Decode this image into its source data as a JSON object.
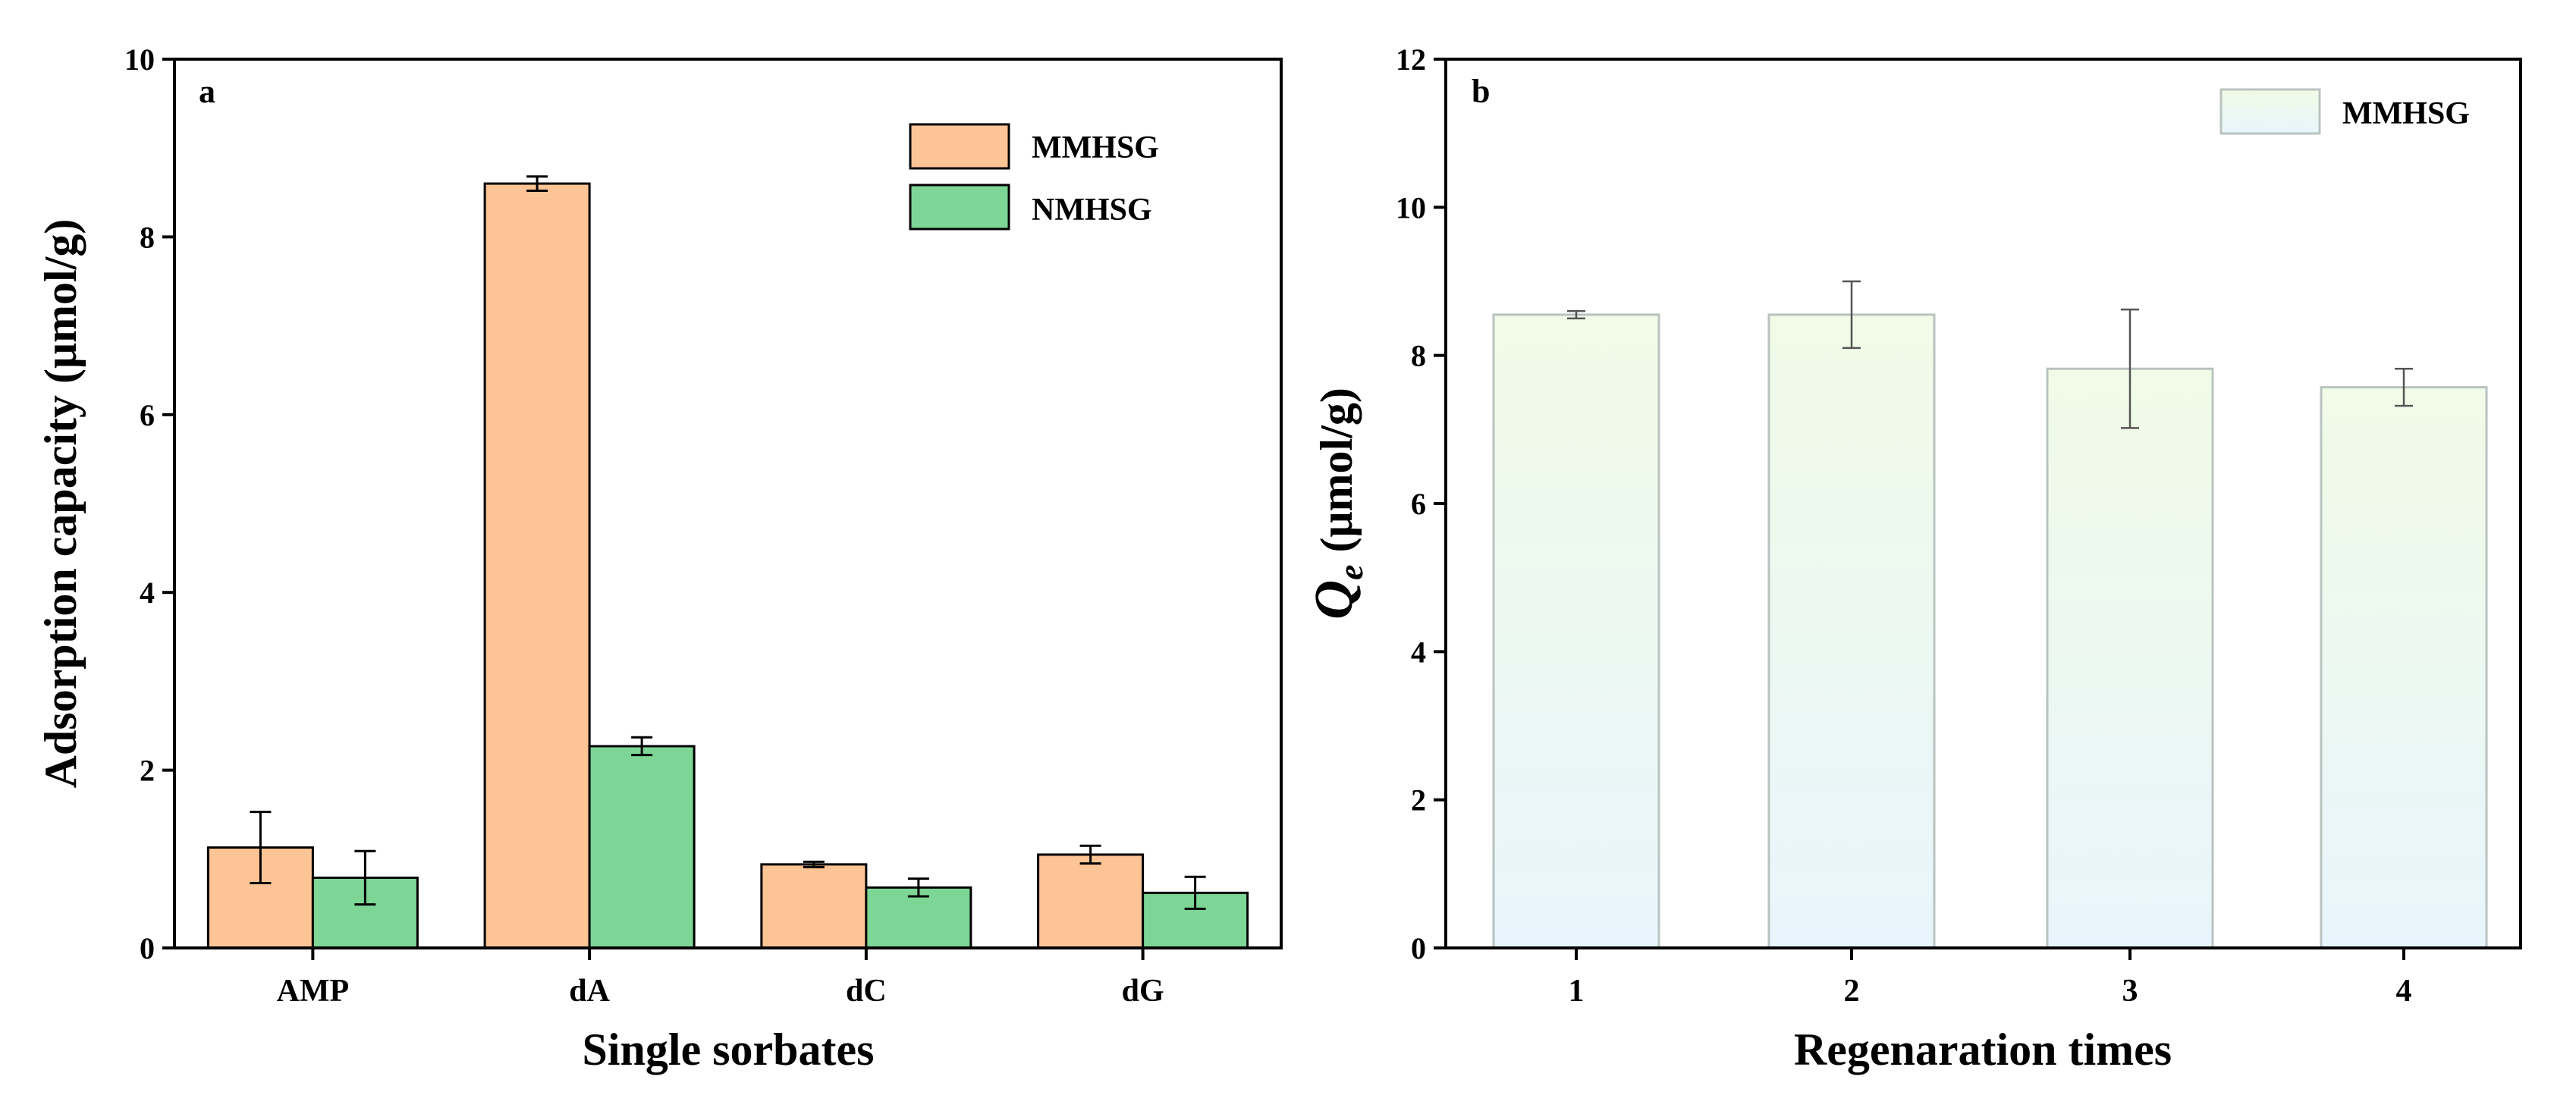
{
  "colors": {
    "mmhsg": "#fdc596",
    "nmhsg": "#7dd596",
    "b_top": "#f1fbe7",
    "b_bottom": "#e8f5fc",
    "b_stroke": "#b9c3c0"
  },
  "chart_data": [
    {
      "type": "bar",
      "panel_label": "a",
      "title": "",
      "xlabel": "Single sorbates",
      "ylabel": "Adsorption capacity (μmol/g)",
      "categories": [
        "AMP",
        "dA",
        "dC",
        "dG"
      ],
      "ylim": [
        0,
        10
      ],
      "yticks": [
        0,
        2,
        4,
        6,
        8,
        10
      ],
      "legend_position": "top-right",
      "series": [
        {
          "name": "MMHSG",
          "values": [
            1.13,
            8.6,
            0.94,
            1.05
          ],
          "errors": [
            0.4,
            0.08,
            0.03,
            0.1
          ]
        },
        {
          "name": "NMHSG",
          "values": [
            0.79,
            2.27,
            0.68,
            0.62
          ],
          "errors": [
            0.3,
            0.1,
            0.1,
            0.18
          ]
        }
      ]
    },
    {
      "type": "bar",
      "panel_label": "b",
      "title": "",
      "xlabel": "Regenaration times",
      "ylabel_symbol": "Q",
      "ylabel_subscript": "e",
      "ylabel_unit": "(μmol/g)",
      "categories": [
        "1",
        "2",
        "3",
        "4"
      ],
      "ylim": [
        0,
        12
      ],
      "yticks": [
        0,
        2,
        4,
        6,
        8,
        10,
        12
      ],
      "legend_position": "top-right",
      "series": [
        {
          "name": "MMHSG",
          "values": [
            8.55,
            8.55,
            7.82,
            7.57
          ],
          "errors": [
            0.05,
            0.45,
            0.8,
            0.25
          ]
        }
      ]
    }
  ]
}
